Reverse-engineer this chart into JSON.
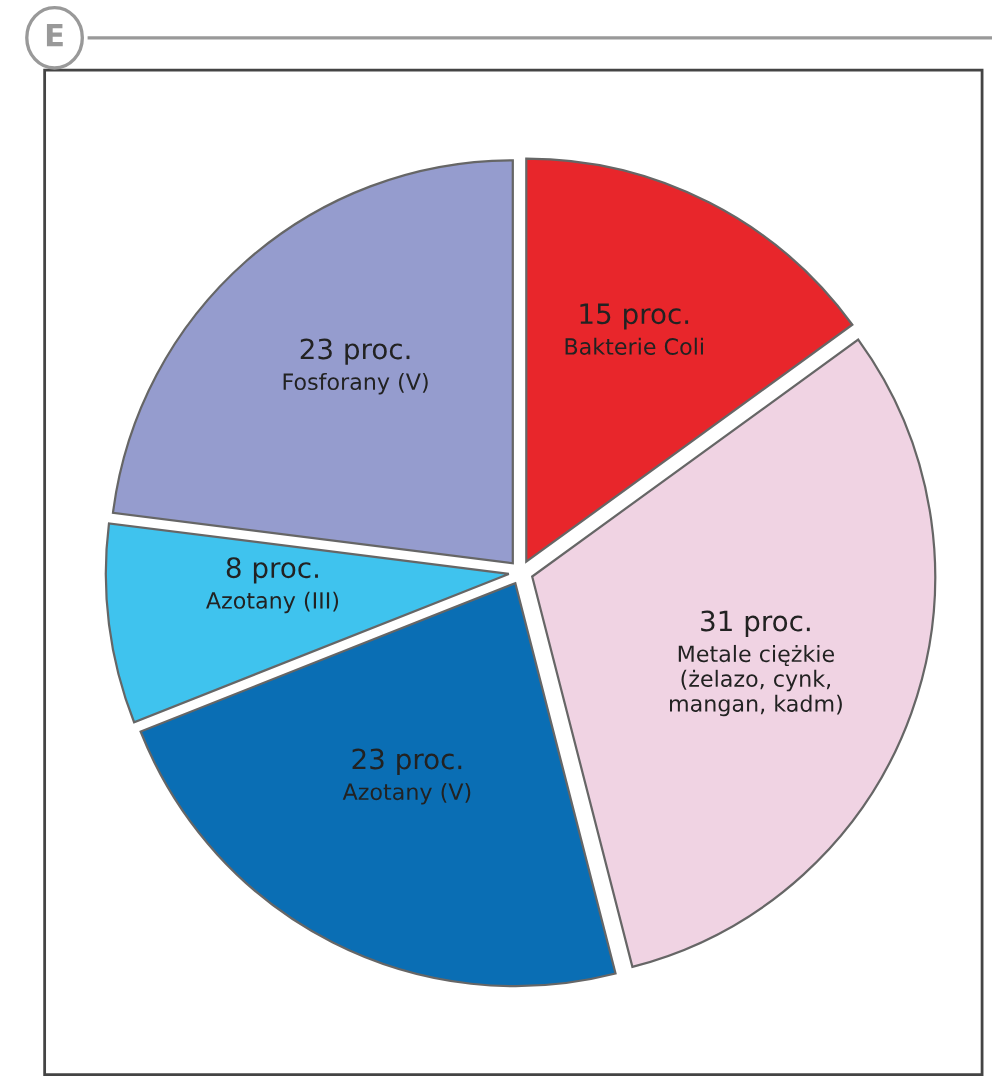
{
  "chart_data": {
    "type": "pie",
    "categories": [
      "Bakterie Coli",
      "Metale ciężkie\n(żelazo, cynk,\nmangan, kadm)",
      "Azotany (V)",
      "Azotany (III)",
      "Fosforany (V)"
    ],
    "values": [
      15,
      31,
      23,
      8,
      23
    ],
    "value_labels": [
      "15 proc.",
      "31 proc.",
      "23 proc.",
      "8 proc.",
      "23 proc."
    ],
    "colors": [
      "#e8262b",
      "#f0d3e3",
      "#0a6eb4",
      "#3fc3ee",
      "#959cce"
    ],
    "annotations": [
      "E"
    ]
  }
}
